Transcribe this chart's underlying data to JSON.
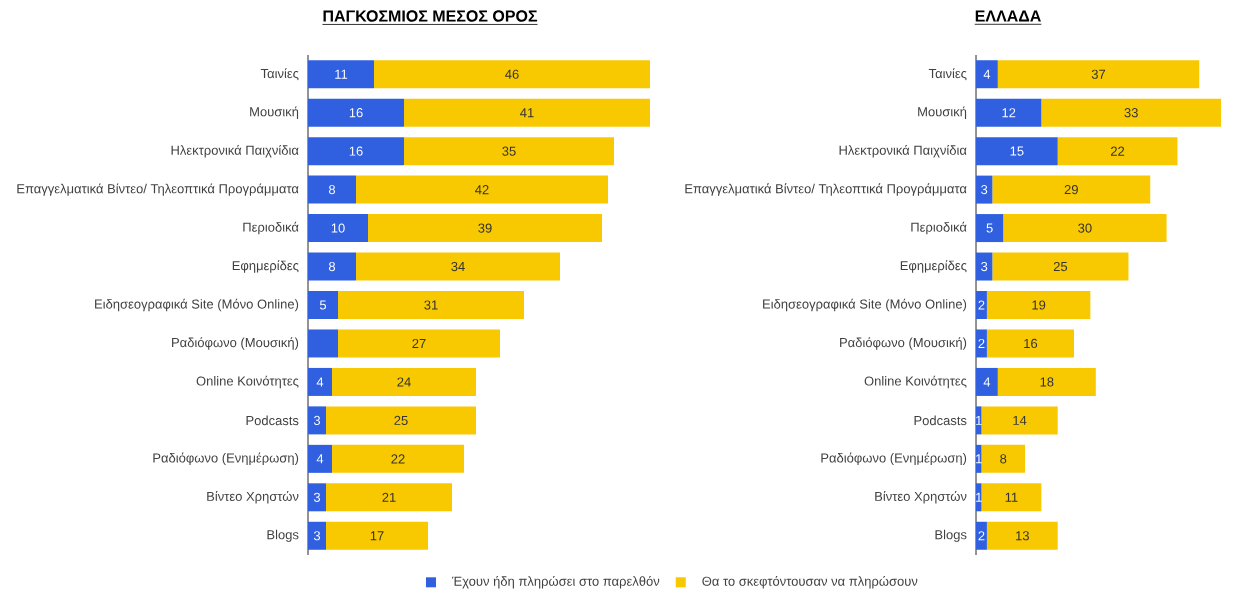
{
  "chart_data": [
    {
      "type": "bar",
      "orientation": "horizontal",
      "stacked": true,
      "title": "ΠΑΓΚΟΣΜΙΟΣ ΜΕΣΟΣ ΟΡΟΣ",
      "legend": "bottom",
      "categories": [
        "Ταινίες",
        "Μουσική",
        "Ηλεκτρονικά Παιχνίδια",
        "Επαγγελματικά Βίντεο/ Τηλεοπτικά Προγράμματα",
        "Περιοδικά",
        "Εφημερίδες",
        "Ειδησεογραφικά Site (Μόνο Online)",
        "Ραδιόφωνο (Μουσική)",
        "Online Κοινότητες",
        "Podcasts",
        "Ραδιόφωνο (Ενημέρωση)",
        "Βίντεο Χρηστών",
        "Blogs"
      ],
      "series": [
        {
          "name": "Έχουν ήδη πληρώσει στο παρελθόν",
          "color": "#3060e0",
          "values": [
            11,
            16,
            16,
            8,
            10,
            8,
            5,
            5,
            4,
            3,
            4,
            3,
            3
          ],
          "value_labels": [
            "11",
            "16",
            "16",
            "8",
            "10",
            "8",
            "5",
            null,
            "4",
            "3",
            "4",
            "3",
            "3"
          ]
        },
        {
          "name": "Θα το σκεφτόντουσαν να πληρώσουν",
          "color": "#f8c800",
          "values": [
            46,
            41,
            35,
            42,
            39,
            34,
            31,
            27,
            24,
            25,
            22,
            21,
            17
          ],
          "value_labels": [
            "46",
            "41",
            "35",
            "42",
            "39",
            "34",
            "31",
            "27",
            "24",
            "25",
            "22",
            "21",
            "17"
          ]
        }
      ]
    },
    {
      "type": "bar",
      "orientation": "horizontal",
      "stacked": true,
      "title": "ΕΛΛΑΔΑ",
      "categories": [
        "Ταινίες",
        "Μουσική",
        "Ηλεκτρονικά Παιχνίδια",
        "Επαγγελματικά Βίντεο/ Τηλεοπτικά Προγράμματα",
        "Περιοδικά",
        "Εφημερίδες",
        "Ειδησεογραφικά Site (Μόνο Online)",
        "Ραδιόφωνο (Μουσική)",
        "Online Κοινότητες",
        "Podcasts",
        "Ραδιόφωνο (Ενημέρωση)",
        "Βίντεο Χρηστών",
        "Blogs"
      ],
      "series": [
        {
          "color": "#3060e0",
          "values": [
            4,
            12,
            15,
            3,
            5,
            3,
            2,
            2,
            4,
            1,
            1,
            1,
            2
          ],
          "value_labels": [
            "4",
            "12",
            "15",
            "3",
            "5",
            "3",
            "2",
            "2",
            "4",
            "1",
            "1",
            "1",
            "2"
          ]
        },
        {
          "color": "#f8c800",
          "values": [
            37,
            33,
            22,
            29,
            30,
            25,
            19,
            16,
            18,
            14,
            8,
            11,
            13
          ],
          "value_labels": [
            "37",
            "33",
            "22",
            "29",
            "30",
            "25",
            "19",
            "16",
            "18",
            "14",
            "8",
            "11",
            "13"
          ]
        }
      ]
    }
  ]
}
